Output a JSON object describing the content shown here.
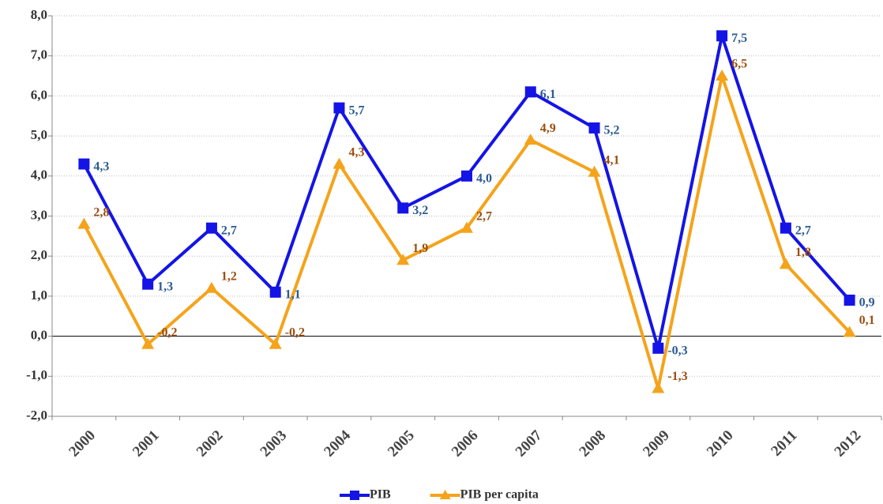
{
  "chart_data": {
    "type": "line",
    "categories": [
      "2000",
      "2001",
      "2002",
      "2003",
      "2004",
      "2005",
      "2006",
      "2007",
      "2008",
      "2009",
      "2010",
      "2011",
      "2012"
    ],
    "series": [
      {
        "name": "PIB",
        "color": "#1414e6",
        "label_color": "#2a5a92",
        "marker": "square",
        "values": [
          4.3,
          1.3,
          2.7,
          1.1,
          5.7,
          3.2,
          4.0,
          6.1,
          5.2,
          -0.3,
          7.5,
          2.7,
          0.9
        ],
        "value_labels": [
          "4,3",
          "1,3",
          "2,7",
          "1,1",
          "5,7",
          "3,2",
          "4,0",
          "6,1",
          "5,2",
          "-0,3",
          "7,5",
          "2,7",
          "0,9"
        ]
      },
      {
        "name": "PIB per capita",
        "color": "#f5a31b",
        "label_color": "#9a4e12",
        "marker": "triangle",
        "values": [
          2.8,
          -0.2,
          1.2,
          -0.2,
          4.3,
          1.9,
          2.7,
          4.9,
          4.1,
          -1.3,
          6.5,
          1.8,
          0.1
        ],
        "value_labels": [
          "2,8",
          "-0,2",
          "1,2",
          "-0,2",
          "4,3",
          "1,9",
          "2,7",
          "4,9",
          "4,1",
          "-1,3",
          "6,5",
          "1,8",
          "0,1"
        ]
      }
    ],
    "ylim": [
      -2,
      8
    ],
    "yticks": [
      {
        "value": -2,
        "label": "-2,0"
      },
      {
        "value": -1,
        "label": "-1,0"
      },
      {
        "value": 0,
        "label": "0,0"
      },
      {
        "value": 1,
        "label": "1,0"
      },
      {
        "value": 2,
        "label": "2,0"
      },
      {
        "value": 3,
        "label": "3,0"
      },
      {
        "value": 4,
        "label": "4,0"
      },
      {
        "value": 5,
        "label": "5,0"
      },
      {
        "value": 6,
        "label": "6,0"
      },
      {
        "value": 7,
        "label": "7,0"
      },
      {
        "value": 8,
        "label": "8,0"
      }
    ],
    "grid": true,
    "legend": "bottom"
  }
}
